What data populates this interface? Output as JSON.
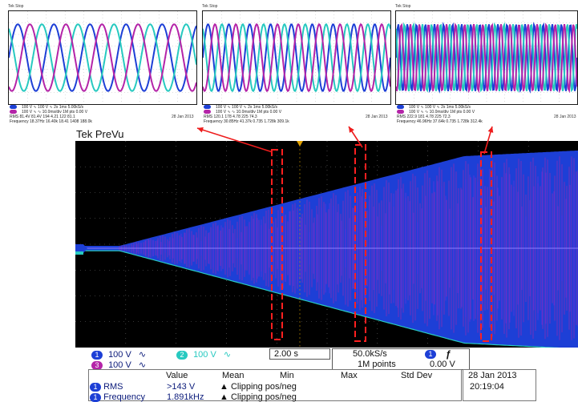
{
  "main": {
    "title": "Tek PreVu",
    "ch1_scale": "100 V",
    "ch2_scale": "100 V",
    "ch3_scale": "100 V",
    "ch1_num": "1",
    "ch2_num": "2",
    "ch3_num": "3",
    "coupling_symbol": "∿",
    "timebase": "2.00 s",
    "sample_rate": "50.0kS/s",
    "record_length": "1M points",
    "trigger_channel": "1",
    "trigger_slope": "ƒ",
    "trigger_level": "0.00 V",
    "date": "28 Jan  2013",
    "time": "20:19:04"
  },
  "measurements": {
    "headers": [
      "Value",
      "Mean",
      "Min",
      "Max",
      "Std Dev"
    ],
    "rows": [
      {
        "channel": "1",
        "name": "RMS",
        "value": ">143 V",
        "mean": "▲ Clipping pos/neg"
      },
      {
        "channel": "1",
        "name": "Frequency",
        "value": "1.891kHz",
        "mean": "▲ Clipping pos/neg"
      }
    ]
  },
  "minis": [
    {
      "title": "Tek Stop",
      "info_r1": "100 V   ∿   100 V ∿   2s 1ms   5.00kS/s",
      "info_r2": "100 V   ∿        ∿  10.0ms/div  1M pts  0.00 V",
      "meas_r1": "RMS   81.4V  81.4V  194  4.21  122  81.1",
      "meas_r2": "Frequency  18.37Hz  16.40k 18.41  1408 188.0k",
      "date": "28 Jan 2013"
    },
    {
      "title": "Tek Stop",
      "info_r1": "100 V   ∿   100 V ∿   2s 1ms   5.00kS/s",
      "info_r2": "100 V   ∿        ∿  10.0ms/div  1M pts  0.00 V",
      "meas_r1": "RMS   120.1  178  4.78  225  74.3",
      "meas_r2": "Frequency  30.85Hz  41.37k 0.735 1.728k  309.1k",
      "date": "28 Jan 2013"
    },
    {
      "title": "Tek Stop",
      "info_r1": "100 V   ∿   100 V ∿   2s 1ms   5.00kS/s",
      "info_r2": "100 V   ∿        ∿  10.0ms/div  1M pts  0.00 V",
      "meas_r1": "RMS   222.9  181  4.78  225  72.3",
      "meas_r2": "Frequency  46.96Hz 37.64k  0.735 1.728k 312.4k",
      "date": "28 Jan 2013"
    }
  ],
  "colors": {
    "ch1": "#1d3fd6",
    "ch2": "#27c9c0",
    "ch3": "#b424a8",
    "arrow": "#ee1c1c",
    "marker": "#ff2020"
  }
}
